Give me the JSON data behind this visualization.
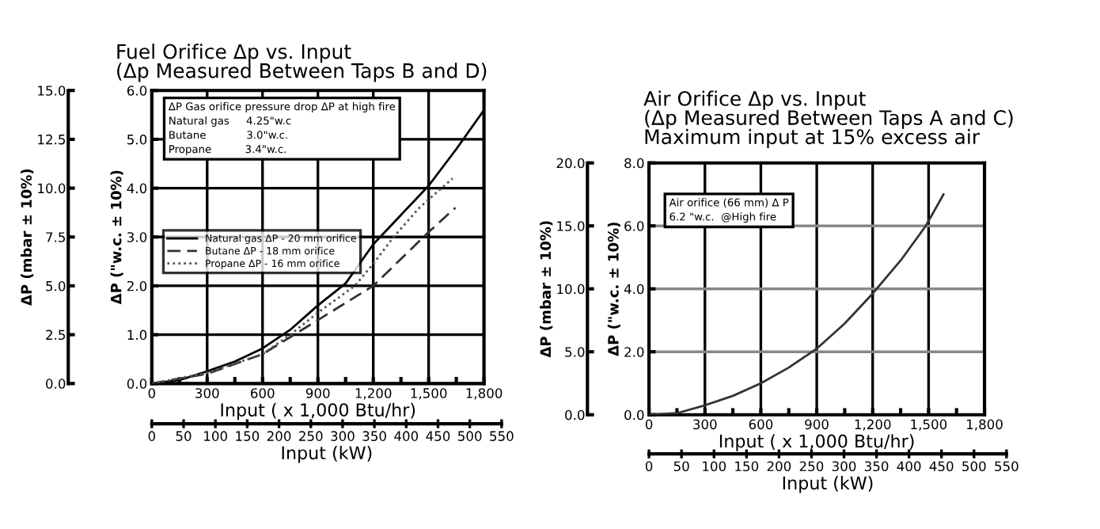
{
  "chart_data": [
    {
      "type": "line",
      "title": "Fuel Orifice Δp vs. Input\n(Δp Measured Between Taps B and D)",
      "xlabel": "Input ( x 1,000 Btu/hr)",
      "ylabel": "ΔP (\"w.c. ± 10%)",
      "y2label": "ΔP (mbar ± 10%)",
      "x2label": "Input (kW)",
      "annotations": [
        "ΔP Gas orifice pressure drop ΔP at high fire\nNatural gas     4.25\"w.c\nButane            3.0\"w.c.\nPropane          3.4\"w.c."
      ],
      "xlim": [
        0,
        1800
      ],
      "xticks": [
        0,
        {
          "value": 150,
          "label": null
        },
        300,
        {
          "value": 450,
          "label": null
        },
        600,
        {
          "value": 750,
          "label": null
        },
        900,
        {
          "value": 1050,
          "label": null
        },
        {
          "value": 1200,
          "label": "1,200"
        },
        {
          "value": 1350,
          "label": null
        },
        {
          "value": 1500,
          "label": "1,500"
        },
        {
          "value": 1650,
          "label": null
        },
        {
          "value": 1800,
          "label": "1,800"
        }
      ],
      "ylim": [
        0,
        6
      ],
      "yticks": [
        {
          "value": 0,
          "label": "0.0"
        },
        {
          "value": 1,
          "label": "1.0"
        },
        {
          "value": 2,
          "label": "2.0"
        },
        {
          "value": 3,
          "label": "3.0"
        },
        {
          "value": 4,
          "label": "4.0"
        },
        {
          "value": 5,
          "label": "5.0"
        },
        {
          "value": 6,
          "label": "6.0"
        }
      ],
      "y2lim": [
        0,
        15
      ],
      "y2ticks": [
        {
          "value": 0,
          "label": "0.0"
        },
        2.5,
        {
          "value": 5,
          "label": "5.0"
        },
        7.5,
        {
          "value": 10,
          "label": "10.0"
        },
        12.5,
        {
          "value": 15,
          "label": "15.0"
        }
      ],
      "x2lim": [
        0,
        550
      ],
      "x2ticks": [
        0,
        50,
        100,
        150,
        200,
        250,
        300,
        350,
        400,
        450,
        500,
        550
      ],
      "grid": true,
      "legend": "left",
      "series": [
        {
          "name": "Natural gas ΔP - 20 mm orifice",
          "color": "#000000",
          "line_style": "solid",
          "x": [
            0,
            150,
            300,
            450,
            600,
            750,
            900,
            1050,
            1200,
            1350,
            1500,
            1650,
            1800
          ],
          "values": [
            0,
            0.07,
            0.25,
            0.45,
            0.72,
            1.1,
            1.6,
            2.05,
            2.85,
            3.45,
            4.05,
            4.8,
            5.6
          ]
        },
        {
          "name": "Butane ΔP - 18 mm orifice",
          "color": "#333333",
          "line_style": "dashed",
          "x": [
            0,
            300,
            600,
            750,
            900,
            1050,
            1200,
            1350,
            1500,
            1645
          ],
          "values": [
            0,
            0.2,
            0.6,
            0.95,
            1.3,
            1.65,
            2.0,
            2.55,
            3.1,
            3.6
          ]
        },
        {
          "name": "Propane ΔP - 16 mm orifice",
          "color": "#555555",
          "line_style": "dotted",
          "x": [
            0,
            300,
            600,
            750,
            900,
            1100,
            1200,
            1310,
            1450,
            1630
          ],
          "values": [
            0,
            0.22,
            0.6,
            1.0,
            1.45,
            2.0,
            2.45,
            3.0,
            3.6,
            4.2
          ]
        }
      ]
    },
    {
      "type": "line",
      "title": "Air Orifice Δp vs. Input\n(Δp Measured Between Taps A and C)\nMaximum input at 15% excess air",
      "xlabel": "Input ( x 1,000 Btu/hr)",
      "ylabel": "ΔP (\"w.c. ± 10%)",
      "y2label": "ΔP (mbar ± 10%)",
      "x2label": "Input (kW)",
      "annotations": [
        "Air orifice (66 mm) Δ P\n6.2 \"w.c.  @High fire"
      ],
      "xlim": [
        0,
        1800
      ],
      "xticks": [
        0,
        {
          "value": 150,
          "label": null
        },
        300,
        {
          "value": 450,
          "label": null
        },
        600,
        {
          "value": 750,
          "label": null
        },
        900,
        {
          "value": 1050,
          "label": null
        },
        {
          "value": 1200,
          "label": "1,200"
        },
        {
          "value": 1350,
          "label": null
        },
        {
          "value": 1500,
          "label": "1,500"
        },
        {
          "value": 1650,
          "label": null
        },
        {
          "value": 1800,
          "label": "1,800"
        }
      ],
      "ylim": [
        0,
        8
      ],
      "yticks": [
        {
          "value": 0,
          "label": "0.0"
        },
        {
          "value": 2,
          "label": "2.0"
        },
        {
          "value": 4,
          "label": "4.0"
        },
        {
          "value": 6,
          "label": "6.0"
        },
        {
          "value": 8,
          "label": "8.0"
        }
      ],
      "y2lim": [
        0,
        20
      ],
      "y2ticks": [
        {
          "value": 0,
          "label": "0.0"
        },
        {
          "value": 5,
          "label": "5.0"
        },
        {
          "value": 10,
          "label": "10.0"
        },
        {
          "value": 15,
          "label": "15.0"
        },
        {
          "value": 20,
          "label": "20.0"
        }
      ],
      "x2lim": [
        0,
        550
      ],
      "x2ticks": [
        0,
        50,
        100,
        150,
        200,
        250,
        300,
        350,
        400,
        450,
        500,
        550
      ],
      "grid": true,
      "series": [
        {
          "color": "#333333",
          "line_style": "solid",
          "x": [
            0,
            150,
            300,
            450,
            600,
            750,
            900,
            1050,
            1200,
            1350,
            1485,
            1580
          ],
          "values": [
            0,
            0.05,
            0.3,
            0.6,
            1.0,
            1.5,
            2.1,
            2.9,
            3.85,
            4.9,
            6.0,
            7.0
          ]
        }
      ]
    }
  ]
}
